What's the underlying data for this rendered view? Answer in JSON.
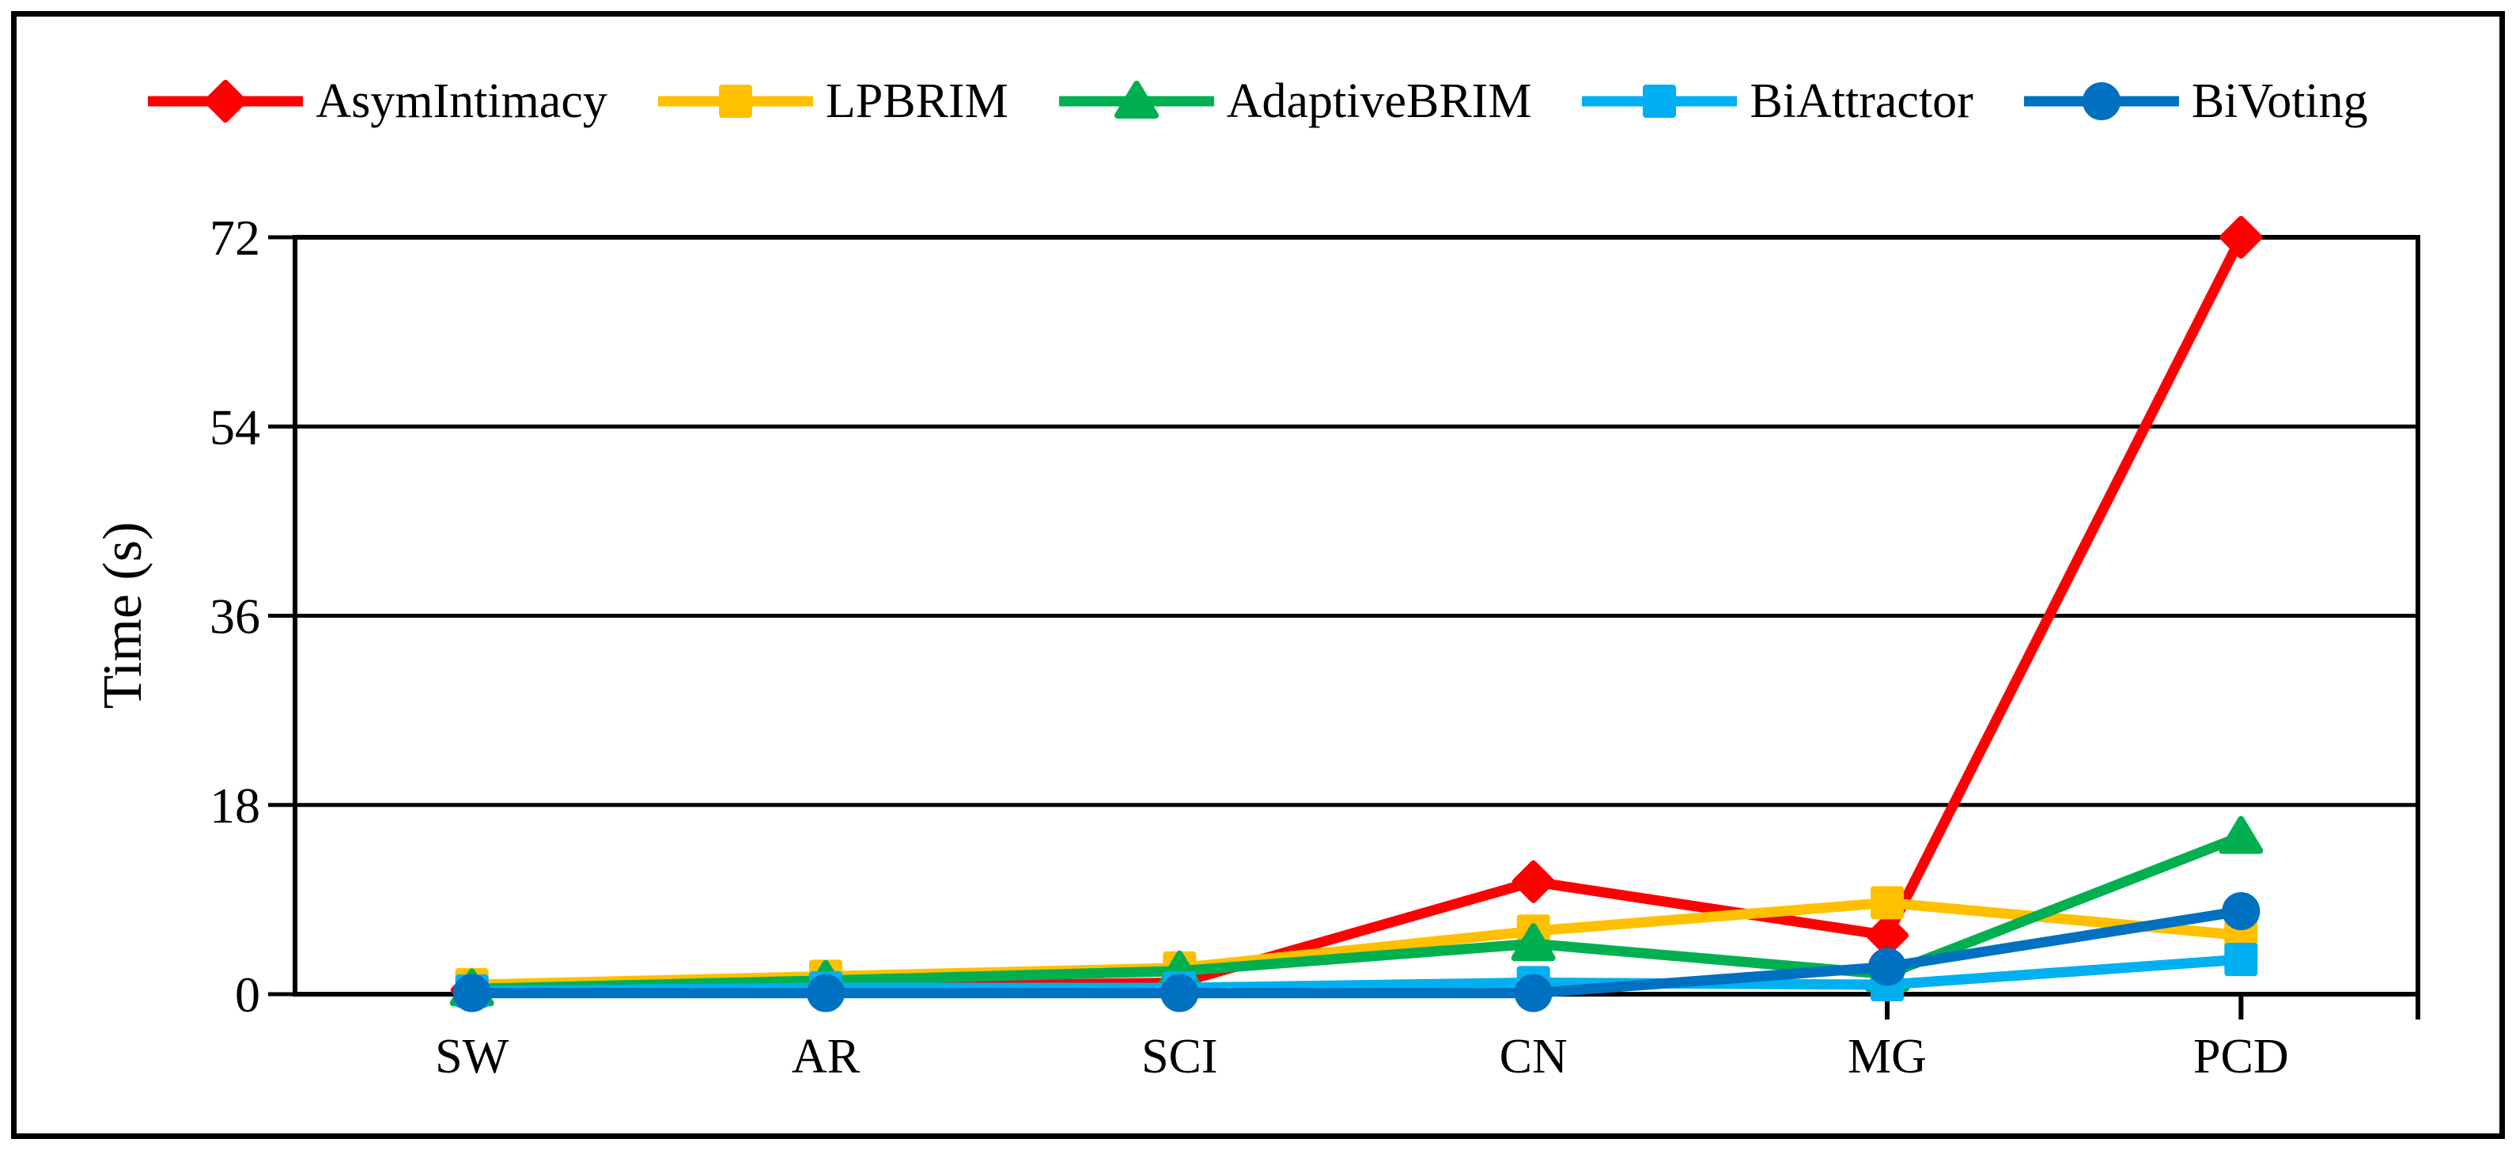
{
  "figure": {
    "background": "#ffffff",
    "border_color": "#000000"
  },
  "chart_data": {
    "type": "line",
    "title": "",
    "categories": [
      "SW",
      "AR",
      "SCI",
      "CN",
      "MG",
      "PCD"
    ],
    "series": [
      {
        "name": "AsymIntimacy",
        "color": "#FF0000",
        "marker": "diamond",
        "values": [
          0.4,
          0.6,
          1.1,
          10.7,
          5.6,
          72.0
        ]
      },
      {
        "name": "LPBRIM",
        "color": "#FFC000",
        "marker": "square",
        "values": [
          0.9,
          1.7,
          2.5,
          6.0,
          8.7,
          5.6
        ]
      },
      {
        "name": "AdaptiveBRIM",
        "color": "#00B050",
        "marker": "triangle",
        "values": [
          0.5,
          1.3,
          2.2,
          4.8,
          1.9,
          15.0
        ]
      },
      {
        "name": "BiAttractor",
        "color": "#00B0F0",
        "marker": "square",
        "values": [
          0.3,
          0.6,
          0.6,
          1.1,
          0.9,
          3.3
        ]
      },
      {
        "name": "BiVoting",
        "color": "#0070C0",
        "marker": "circle",
        "values": [
          0.1,
          0.1,
          0.1,
          0.1,
          2.6,
          7.9
        ]
      }
    ],
    "xlabel": "",
    "ylabel": "Time (s)",
    "yticks": [
      0,
      18,
      36,
      54,
      72
    ],
    "ylim": [
      0,
      72
    ],
    "grid": "horizontal",
    "legend_position": "top",
    "axis_color": "#000000"
  }
}
